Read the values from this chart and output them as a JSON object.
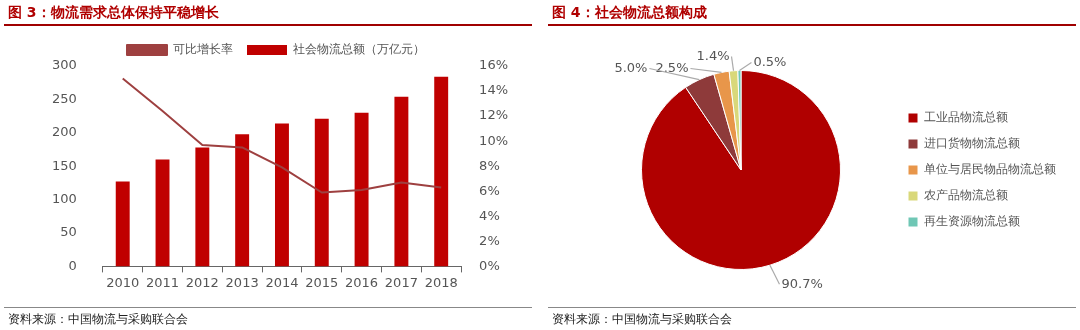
{
  "chart_data": [
    {
      "type": "bar",
      "title": "图 3：物流需求总体保持平稳增长",
      "categories": [
        "2010",
        "2011",
        "2012",
        "2013",
        "2014",
        "2015",
        "2016",
        "2017",
        "2018"
      ],
      "series": [
        {
          "name": "社会物流总额（万亿元）",
          "color": "#c00000",
          "values": [
            127,
            160,
            178,
            198,
            214,
            221,
            230,
            254,
            284
          ]
        },
        {
          "name": "可比增长率",
          "type": "line",
          "axis": "y2",
          "color": "#9e4040",
          "values": [
            15.0,
            12.4,
            9.7,
            9.5,
            7.9,
            5.9,
            6.1,
            6.7,
            6.3
          ]
        }
      ],
      "ylim": [
        0,
        300
      ],
      "yticks": [
        0,
        50,
        100,
        150,
        200,
        250,
        300
      ],
      "y2lim": [
        0,
        16
      ],
      "y2ticks": [
        {
          "value": 0,
          "label": "0%"
        },
        {
          "value": 2,
          "label": "2%"
        },
        {
          "value": 4,
          "label": "4%"
        },
        {
          "value": 6,
          "label": "6%"
        },
        {
          "value": 8,
          "label": "8%"
        },
        {
          "value": 10,
          "label": "10%"
        },
        {
          "value": 12,
          "label": "12%"
        },
        {
          "value": 14,
          "label": "14%"
        },
        {
          "value": 16,
          "label": "16%"
        }
      ],
      "grid": false,
      "legend": "top",
      "annotations": [
        "资料来源：中国物流与采购联合会"
      ]
    },
    {
      "type": "pie",
      "title": "图 4：社会物流总额构成",
      "categories": [
        "工业品物流总额",
        "进口货物物流总额",
        "单位与居民物品物流总额",
        "农产品物流总额",
        "再生资源物流总额"
      ],
      "values": [
        90.7,
        5.0,
        2.5,
        1.4,
        0.5
      ],
      "colors": [
        "#b00000",
        "#8e3a3a",
        "#e8964a",
        "#d9d87a",
        "#6fc7b5"
      ],
      "value_labels": [
        "90.7%",
        "5.0%",
        "2.5%",
        "1.4%",
        "0.5%"
      ],
      "legend": "right",
      "annotations": [
        "资料来源：中国物流与采购联合会"
      ]
    }
  ]
}
